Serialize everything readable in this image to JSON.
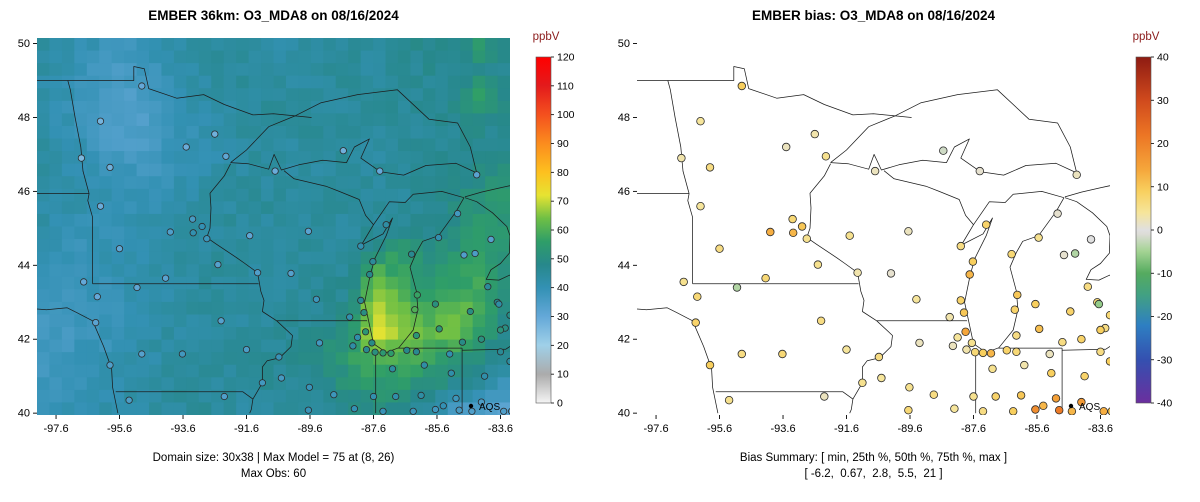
{
  "figure": {
    "left": {
      "title": "EMBER 36km: O3_MDA8 on 08/16/2024",
      "colorbar": {
        "title": "ppbV",
        "min": 0,
        "max": 120,
        "ticks": [
          0,
          10,
          20,
          30,
          40,
          50,
          60,
          70,
          80,
          90,
          100,
          110,
          120
        ]
      },
      "caption1": "Domain size: 30x38 | Max Model = 75 at (8, 26)",
      "caption2": "Max Obs: 60",
      "legend": "AQS"
    },
    "right": {
      "title": "EMBER bias: O3_MDA8 on 08/16/2024",
      "colorbar": {
        "title": "ppbV",
        "min": -40,
        "max": 40,
        "ticks": [
          -40,
          -30,
          -20,
          -10,
          0,
          10,
          20,
          30,
          40
        ]
      },
      "caption1": "Bias Summary: [ min, 25th %, 50th %, 75th %, max ]",
      "caption2": "[ -6.2,  0.67,  2.8,  5.5,  21 ]",
      "legend": "AQS"
    },
    "axes": {
      "x_tick_labels": [
        "-97.6",
        "-95.6",
        "-93.6",
        "-91.6",
        "-89.6",
        "-87.6",
        "-85.6",
        "-83.6"
      ],
      "y_tick_labels": [
        "40",
        "42",
        "44",
        "46",
        "48",
        "50"
      ],
      "lon_range": [
        -98.2,
        -83.3
      ],
      "lat_range": [
        39.95,
        50.15
      ]
    }
  },
  "chart_data": [
    {
      "type": "heatmap",
      "title": "EMBER 36km: O3_MDA8 on 08/16/2024",
      "units": "ppbV",
      "domain_size": "30x38",
      "max_model": 75,
      "max_model_at": "(8, 26)",
      "max_obs": 60,
      "lon_range": [
        -98.2,
        -83.3
      ],
      "lat_range": [
        39.95,
        50.15
      ],
      "value_range": [
        0,
        120
      ],
      "grid_note": "coarse 19x15 estimate of the 38x30 model field, rows north to south, ppbV",
      "grid_coarse": [
        [
          44,
          42,
          40,
          38,
          40,
          42,
          44,
          45,
          44,
          43,
          44,
          45,
          44,
          45,
          46,
          48,
          46,
          55,
          47
        ],
        [
          43,
          41,
          38,
          36,
          38,
          40,
          43,
          44,
          45,
          44,
          44,
          45,
          45,
          44,
          45,
          47,
          46,
          48,
          46
        ],
        [
          42,
          40,
          37,
          35,
          36,
          39,
          42,
          44,
          44,
          45,
          44,
          44,
          45,
          45,
          46,
          46,
          47,
          58,
          48
        ],
        [
          43,
          40,
          36,
          34,
          35,
          38,
          41,
          43,
          44,
          44,
          45,
          44,
          44,
          45,
          45,
          46,
          46,
          48,
          47
        ],
        [
          44,
          41,
          38,
          35,
          36,
          38,
          40,
          42,
          44,
          44,
          44,
          45,
          44,
          44,
          45,
          46,
          46,
          47,
          46
        ],
        [
          44,
          42,
          40,
          38,
          38,
          40,
          42,
          43,
          44,
          44,
          44,
          44,
          45,
          44,
          45,
          46,
          47,
          50,
          52
        ],
        [
          43,
          42,
          41,
          40,
          40,
          41,
          43,
          44,
          44,
          45,
          44,
          44,
          45,
          45,
          44,
          46,
          48,
          52,
          54
        ],
        [
          42,
          41,
          40,
          40,
          41,
          42,
          44,
          44,
          45,
          44,
          44,
          45,
          44,
          45,
          45,
          47,
          50,
          54,
          52
        ],
        [
          40,
          39,
          40,
          41,
          42,
          43,
          44,
          45,
          44,
          44,
          45,
          44,
          45,
          52,
          55,
          50,
          52,
          56,
          54
        ],
        [
          38,
          38,
          39,
          40,
          42,
          43,
          44,
          44,
          44,
          45,
          44,
          45,
          46,
          62,
          58,
          52,
          55,
          58,
          52
        ],
        [
          37,
          37,
          38,
          40,
          41,
          43,
          44,
          44,
          45,
          44,
          45,
          46,
          48,
          70,
          62,
          58,
          62,
          60,
          50
        ],
        [
          36,
          37,
          38,
          40,
          42,
          43,
          44,
          45,
          44,
          45,
          46,
          48,
          52,
          74,
          66,
          62,
          66,
          58,
          48
        ],
        [
          37,
          38,
          39,
          41,
          42,
          44,
          45,
          44,
          45,
          46,
          47,
          50,
          55,
          62,
          60,
          58,
          55,
          50,
          46
        ],
        [
          38,
          39,
          40,
          42,
          43,
          44,
          44,
          45,
          45,
          46,
          46,
          48,
          52,
          55,
          54,
          52,
          48,
          45,
          40
        ],
        [
          40,
          40,
          41,
          42,
          43,
          44,
          45,
          44,
          44,
          45,
          45,
          46,
          48,
          50,
          48,
          44,
          38,
          34,
          33
        ]
      ],
      "colorscale": [
        [
          0,
          "#f5f5f5"
        ],
        [
          10,
          "#ababab"
        ],
        [
          20,
          "#9fd0e8"
        ],
        [
          30,
          "#64a8d8"
        ],
        [
          40,
          "#3391b4"
        ],
        [
          48,
          "#27888b"
        ],
        [
          56,
          "#2f9e68"
        ],
        [
          64,
          "#6ebf45"
        ],
        [
          72,
          "#e6e332"
        ],
        [
          80,
          "#fdc01f"
        ],
        [
          90,
          "#fb8c1e"
        ],
        [
          100,
          "#f4511e"
        ],
        [
          110,
          "#e31a1c"
        ],
        [
          120,
          "#ff0000"
        ]
      ]
    },
    {
      "type": "scatter",
      "title": "EMBER bias: O3_MDA8 on 08/16/2024",
      "units": "ppbV",
      "bias_summary": {
        "min": -6.2,
        "p25": 0.67,
        "p50": 2.8,
        "p75": 5.5,
        "max": 21
      },
      "legend": "AQS",
      "colorscale": [
        [
          -40,
          "#6b2f9e"
        ],
        [
          -30,
          "#3450b0"
        ],
        [
          -22,
          "#2e7fc2"
        ],
        [
          -15,
          "#42a182"
        ],
        [
          -10,
          "#55ab5f"
        ],
        [
          -5,
          "#a3d393"
        ],
        [
          -1,
          "#dcdcd6"
        ],
        [
          0,
          "#e0e0e0"
        ],
        [
          4,
          "#f6e59b"
        ],
        [
          9,
          "#f8cf5e"
        ],
        [
          14,
          "#f5a63b"
        ],
        [
          22,
          "#ec7524"
        ],
        [
          30,
          "#d04a1d"
        ],
        [
          40,
          "#8e1b12"
        ]
      ],
      "stations_note": "[lon, lat, obs_ppbv (left map fill), bias_ppbv (right map fill)]",
      "stations": [
        [
          -96.8,
          46.9,
          26,
          3
        ],
        [
          -96.2,
          47.9,
          27,
          4
        ],
        [
          -94.9,
          48.85,
          30,
          9
        ],
        [
          -92.6,
          47.55,
          28,
          3
        ],
        [
          -92.25,
          46.95,
          31,
          5
        ],
        [
          -93.5,
          47.2,
          29,
          2
        ],
        [
          -95.9,
          46.65,
          28,
          6
        ],
        [
          -96.2,
          45.6,
          29,
          4
        ],
        [
          -93.3,
          45.25,
          36,
          7
        ],
        [
          -93.0,
          45.05,
          40,
          10
        ],
        [
          -93.28,
          44.88,
          41,
          12
        ],
        [
          -92.85,
          44.72,
          38,
          5
        ],
        [
          -94.0,
          44.9,
          34,
          13
        ],
        [
          -95.6,
          44.45,
          31,
          6
        ],
        [
          -96.73,
          43.55,
          30,
          5
        ],
        [
          -94.15,
          43.65,
          32,
          7
        ],
        [
          -92.5,
          44.02,
          33,
          5
        ],
        [
          -91.25,
          43.8,
          34,
          3
        ],
        [
          -96.35,
          42.45,
          32,
          8
        ],
        [
          -96.3,
          43.15,
          30,
          7
        ],
        [
          -95.05,
          43.4,
          31,
          -4
        ],
        [
          -95.9,
          41.3,
          34,
          9
        ],
        [
          -94.9,
          41.6,
          33,
          6
        ],
        [
          -93.62,
          41.6,
          37,
          7
        ],
        [
          -92.4,
          42.5,
          33,
          6
        ],
        [
          -91.6,
          41.72,
          35,
          4
        ],
        [
          -90.58,
          41.52,
          39,
          6
        ],
        [
          -91.1,
          40.82,
          37,
          5
        ],
        [
          -95.3,
          40.35,
          35,
          5
        ],
        [
          -92.3,
          40.45,
          34,
          2
        ],
        [
          -90.7,
          46.55,
          29,
          2
        ],
        [
          -91.5,
          44.8,
          31,
          5
        ],
        [
          -89.65,
          44.92,
          32,
          2
        ],
        [
          -90.2,
          43.78,
          33,
          1
        ],
        [
          -89.4,
          43.08,
          38,
          4
        ],
        [
          -88.35,
          42.6,
          41,
          3
        ],
        [
          -88.0,
          43.05,
          46,
          8
        ],
        [
          -87.9,
          42.72,
          50,
          10
        ],
        [
          -87.72,
          43.75,
          48,
          12
        ],
        [
          -87.62,
          44.1,
          45,
          9
        ],
        [
          -88.0,
          44.52,
          41,
          6
        ],
        [
          -87.2,
          45.1,
          43,
          8
        ],
        [
          -88.55,
          47.1,
          28,
          -2
        ],
        [
          -87.4,
          46.55,
          30,
          1
        ],
        [
          -84.35,
          46.45,
          32,
          2
        ],
        [
          -86.25,
          42.1,
          53,
          6
        ],
        [
          -86.3,
          42.8,
          60,
          8
        ],
        [
          -86.22,
          43.2,
          57,
          10
        ],
        [
          -86.4,
          44.3,
          47,
          7
        ],
        [
          -85.55,
          44.75,
          41,
          5
        ],
        [
          -84.95,
          45.4,
          37,
          1
        ],
        [
          -85.65,
          42.95,
          51,
          9
        ],
        [
          -85.53,
          42.28,
          53,
          11
        ],
        [
          -84.55,
          42.75,
          50,
          8
        ],
        [
          -84.0,
          43.42,
          45,
          6
        ],
        [
          -83.7,
          43.0,
          47,
          7
        ],
        [
          -84.4,
          44.32,
          35,
          -4
        ],
        [
          -84.75,
          44.28,
          34,
          1
        ],
        [
          -83.9,
          44.7,
          33,
          0
        ],
        [
          -83.45,
          42.3,
          50,
          6
        ],
        [
          -83.15,
          42.42,
          49,
          4
        ],
        [
          -83.6,
          42.25,
          52,
          9
        ],
        [
          -83.3,
          42.65,
          49,
          7
        ],
        [
          -83.65,
          42.95,
          43,
          -6
        ],
        [
          -84.2,
          42.0,
          51,
          8
        ],
        [
          -84.8,
          41.92,
          49,
          6
        ],
        [
          -87.65,
          41.9,
          49,
          5
        ],
        [
          -87.82,
          41.72,
          47,
          3
        ],
        [
          -87.55,
          41.65,
          51,
          7
        ],
        [
          -87.3,
          41.63,
          54,
          9
        ],
        [
          -87.05,
          41.62,
          55,
          12
        ],
        [
          -88.25,
          41.82,
          43,
          2
        ],
        [
          -88.1,
          42.05,
          42,
          4
        ],
        [
          -87.85,
          42.2,
          53,
          14
        ],
        [
          -89.3,
          41.9,
          37,
          2
        ],
        [
          -89.62,
          40.7,
          39,
          5
        ],
        [
          -90.5,
          40.95,
          36,
          4
        ],
        [
          -88.85,
          40.5,
          38,
          6
        ],
        [
          -89.65,
          40.08,
          39,
          7
        ],
        [
          -88.2,
          40.12,
          40,
          4
        ],
        [
          -87.6,
          40.45,
          41,
          5
        ],
        [
          -86.55,
          41.7,
          48,
          8
        ],
        [
          -86.25,
          41.66,
          47,
          7
        ],
        [
          -87.0,
          41.2,
          44,
          5
        ],
        [
          -86.0,
          41.3,
          43,
          3
        ],
        [
          -85.2,
          41.6,
          41,
          2
        ],
        [
          -85.15,
          41.08,
          42,
          9
        ],
        [
          -86.9,
          40.45,
          42,
          8
        ],
        [
          -86.1,
          40.48,
          43,
          10
        ],
        [
          -85.4,
          40.2,
          40,
          12
        ],
        [
          -85.0,
          40.4,
          38,
          15
        ],
        [
          -85.65,
          40.1,
          37,
          18
        ],
        [
          -84.9,
          40.08,
          36,
          21
        ],
        [
          -86.35,
          40.05,
          38,
          9
        ],
        [
          -87.3,
          40.05,
          39,
          6
        ],
        [
          -84.1,
          41.0,
          42,
          8
        ],
        [
          -83.6,
          41.66,
          46,
          6
        ],
        [
          -83.3,
          41.4,
          44,
          9
        ],
        [
          -83.15,
          40.3,
          36,
          11
        ],
        [
          -83.5,
          40.05,
          34,
          13
        ],
        [
          -84.2,
          40.3,
          35,
          16
        ],
        [
          -83.25,
          40.05,
          33,
          10
        ],
        [
          -84.5,
          40.05,
          34,
          12
        ]
      ]
    }
  ]
}
